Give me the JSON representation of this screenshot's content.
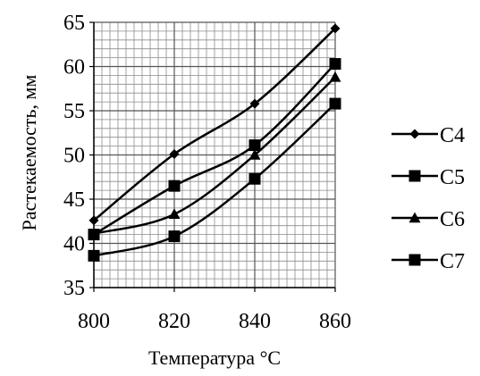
{
  "chart_data": {
    "type": "line",
    "xlabel": "Температура °C",
    "ylabel": "Растекаемость, мм",
    "x": [
      800,
      820,
      840,
      860
    ],
    "xlim": [
      800,
      860
    ],
    "ylim": [
      35,
      65
    ],
    "xticks": [
      800,
      820,
      840,
      860
    ],
    "yticks": [
      35,
      40,
      45,
      50,
      55,
      60,
      65
    ],
    "grid": true,
    "legend": "right",
    "series": [
      {
        "name": "C4",
        "marker": "diamond",
        "values": [
          42.6,
          50.1,
          55.8,
          64.3
        ]
      },
      {
        "name": "C5",
        "marker": "square",
        "values": [
          41.0,
          46.5,
          51.1,
          60.3
        ]
      },
      {
        "name": "C6",
        "marker": "triangle",
        "values": [
          41.1,
          43.3,
          50.0,
          58.8
        ]
      },
      {
        "name": "C7",
        "marker": "square",
        "values": [
          38.6,
          40.8,
          47.3,
          55.8
        ]
      }
    ]
  },
  "colors": {
    "line": "#000000",
    "grid": "#8c8c8c",
    "background": "#ffffff"
  }
}
